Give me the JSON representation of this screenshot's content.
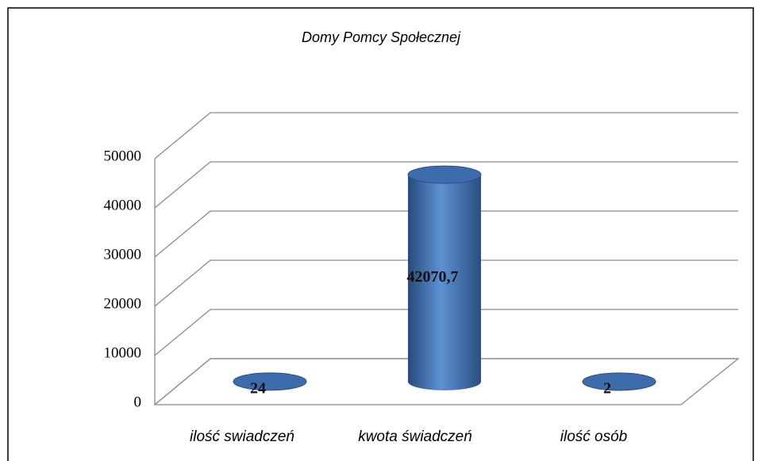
{
  "chart_data": {
    "type": "bar3d",
    "title": "Domy Pomcy Społecznej",
    "categories": [
      "ilość swiadczeń",
      "kwota świadczeń",
      "ilość osób"
    ],
    "values": [
      24,
      42070.7,
      2
    ],
    "value_labels": [
      "24",
      "42070,7",
      "2"
    ],
    "color": "#3c6cab",
    "ylim": [
      0,
      50000
    ],
    "yticks": [
      0,
      10000,
      20000,
      30000,
      40000,
      50000
    ],
    "grid": true
  }
}
